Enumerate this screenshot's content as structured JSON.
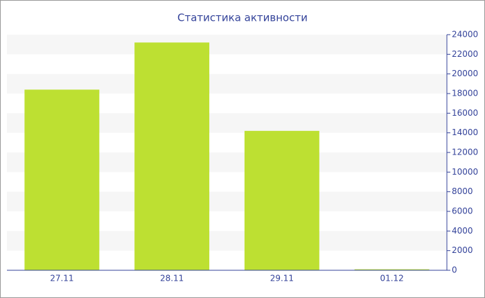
{
  "chart_data": {
    "type": "bar",
    "title": "Статистика активности",
    "categories": [
      "27.11",
      "28.11",
      "29.11",
      "01.12"
    ],
    "values": [
      18400,
      23200,
      14200,
      100
    ],
    "color": "#bde032",
    "ylim": [
      0,
      24000
    ],
    "yticks": [
      0,
      2000,
      4000,
      6000,
      8000,
      10000,
      12000,
      14000,
      16000,
      18000,
      20000,
      22000,
      24000
    ],
    "grid": true
  }
}
